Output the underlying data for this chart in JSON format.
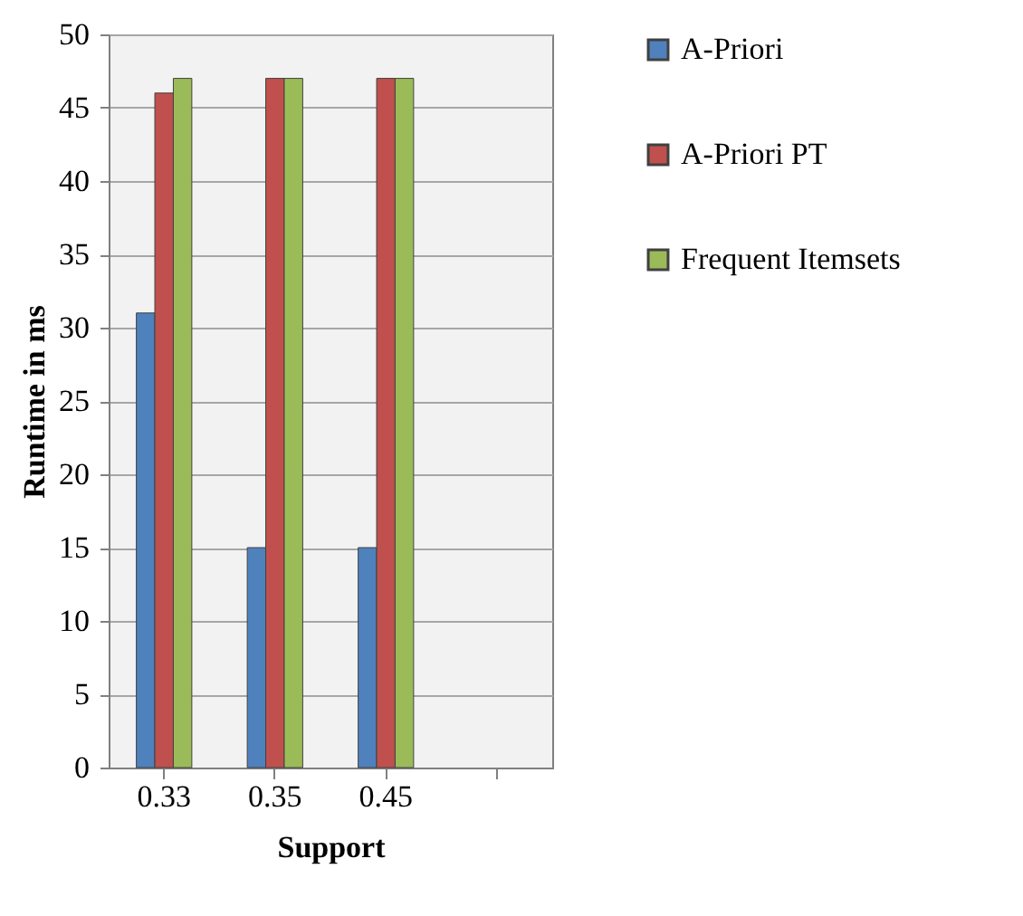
{
  "chart_data": {
    "type": "bar",
    "xlabel": "Support",
    "ylabel": "Runtime in ms",
    "categories": [
      "0.33",
      "0.35",
      "0.45",
      null
    ],
    "series": [
      {
        "name": "A-Priori",
        "color": "#4f81bd",
        "values": [
          31,
          15,
          15,
          null
        ]
      },
      {
        "name": "A-Priori PT",
        "color": "#c0504d",
        "values": [
          46,
          47,
          47,
          null
        ]
      },
      {
        "name": "Frequent Itemsets",
        "color": "#9bbb59",
        "values": [
          47,
          47,
          47,
          null
        ]
      }
    ],
    "ylim": [
      0,
      50
    ],
    "yticks": [
      0,
      5,
      10,
      15,
      20,
      25,
      30,
      35,
      40,
      45,
      50
    ],
    "grid": "y",
    "legend": "right"
  }
}
